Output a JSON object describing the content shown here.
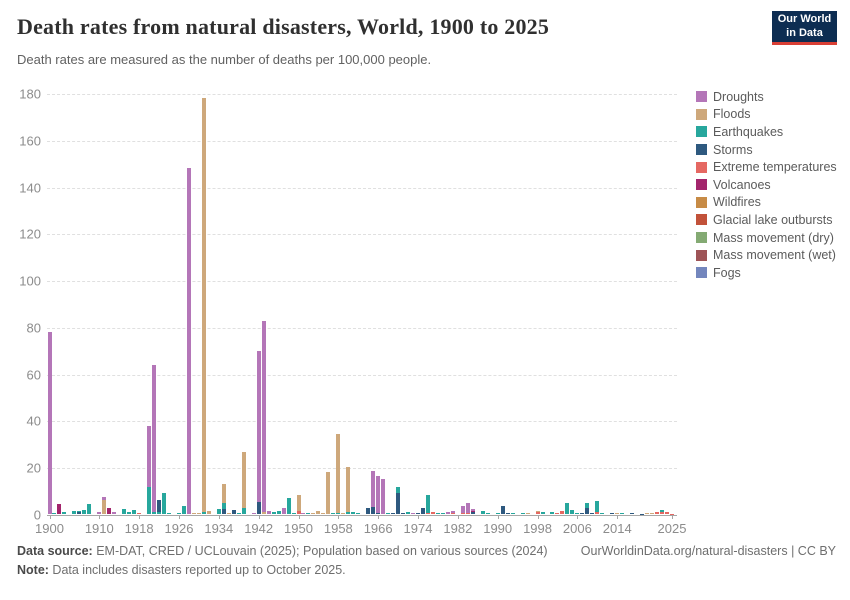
{
  "header": {
    "title": "Death rates from natural disasters, World, 1900 to 2025",
    "subtitle": "Death rates are measured as the number of deaths per 100,000 people.",
    "logo_line1": "Our World",
    "logo_line2": "in Data"
  },
  "legend": {
    "items": [
      {
        "label": "Droughts",
        "color": "#b476b8"
      },
      {
        "label": "Floods",
        "color": "#cea87b"
      },
      {
        "label": "Earthquakes",
        "color": "#27a79d"
      },
      {
        "label": "Storms",
        "color": "#2e597f"
      },
      {
        "label": "Extreme temperatures",
        "color": "#e56862"
      },
      {
        "label": "Volcanoes",
        "color": "#a3256c"
      },
      {
        "label": "Wildfires",
        "color": "#c78b46"
      },
      {
        "label": "Glacial lake outbursts",
        "color": "#c2523a"
      },
      {
        "label": "Mass movement (dry)",
        "color": "#84aa73"
      },
      {
        "label": "Mass movement (wet)",
        "color": "#9e5457"
      },
      {
        "label": "Fogs",
        "color": "#7386bd"
      }
    ]
  },
  "chart_data": {
    "type": "bar",
    "stacked": true,
    "title": "Death rates from natural disasters, World, 1900 to 2025",
    "unit": "deaths per 100,000 people",
    "xlabel": "",
    "ylabel": "",
    "ylim": [
      0,
      180
    ],
    "y_ticks": [
      0,
      20,
      40,
      60,
      80,
      100,
      120,
      140,
      160,
      180
    ],
    "x_range": [
      1900,
      2025
    ],
    "x_ticks": [
      1900,
      1910,
      1918,
      1926,
      1934,
      1942,
      1950,
      1958,
      1966,
      1974,
      1982,
      1990,
      1998,
      2006,
      2014,
      2025
    ],
    "grid": "horizontal-dashed",
    "legend_position": "right",
    "series": [
      "Droughts",
      "Floods",
      "Earthquakes",
      "Storms",
      "Extreme temperatures",
      "Volcanoes",
      "Wildfires",
      "Glacial lake outbursts",
      "Mass movement (dry)",
      "Mass movement (wet)",
      "Fogs"
    ],
    "bars": [
      {
        "year": 1900,
        "segments": [
          [
            "Droughts",
            77.8
          ]
        ]
      },
      {
        "year": 1901,
        "segments": [
          [
            "Earthquakes",
            0.3
          ]
        ]
      },
      {
        "year": 1902,
        "segments": [
          [
            "Volcanoes",
            4.4
          ]
        ]
      },
      {
        "year": 1903,
        "segments": [
          [
            "Earthquakes",
            0.7
          ]
        ]
      },
      {
        "year": 1905,
        "segments": [
          [
            "Earthquakes",
            1.2
          ]
        ]
      },
      {
        "year": 1906,
        "segments": [
          [
            "Storms",
            0.9
          ],
          [
            "Earthquakes",
            0.4
          ]
        ]
      },
      {
        "year": 1907,
        "segments": [
          [
            "Earthquakes",
            1.8
          ]
        ]
      },
      {
        "year": 1908,
        "segments": [
          [
            "Earthquakes",
            4.2
          ]
        ]
      },
      {
        "year": 1910,
        "segments": [
          [
            "Droughts",
            0.8
          ]
        ]
      },
      {
        "year": 1911,
        "segments": [
          [
            "Floods",
            5.8
          ],
          [
            "Droughts",
            1.4
          ]
        ]
      },
      {
        "year": 1912,
        "segments": [
          [
            "Volcanoes",
            2.6
          ]
        ]
      },
      {
        "year": 1913,
        "segments": [
          [
            "Droughts",
            1.0
          ]
        ]
      },
      {
        "year": 1915,
        "segments": [
          [
            "Earthquakes",
            2.0
          ]
        ]
      },
      {
        "year": 1916,
        "segments": [
          [
            "Earthquakes",
            0.7
          ]
        ]
      },
      {
        "year": 1917,
        "segments": [
          [
            "Earthquakes",
            1.9
          ]
        ]
      },
      {
        "year": 1918,
        "segments": [
          [
            "Extreme temperatures",
            0.5
          ]
        ]
      },
      {
        "year": 1920,
        "segments": [
          [
            "Earthquakes",
            11.5
          ],
          [
            "Droughts",
            26.0
          ]
        ]
      },
      {
        "year": 1921,
        "segments": [
          [
            "Earthquakes",
            0.8
          ],
          [
            "Droughts",
            63.0
          ]
        ]
      },
      {
        "year": 1922,
        "segments": [
          [
            "Earthquakes",
            1.0
          ],
          [
            "Storms",
            5.0
          ]
        ]
      },
      {
        "year": 1923,
        "segments": [
          [
            "Earthquakes",
            8.8
          ]
        ]
      },
      {
        "year": 1924,
        "segments": [
          [
            "Earthquakes",
            0.5
          ]
        ]
      },
      {
        "year": 1926,
        "segments": [
          [
            "Earthquakes",
            0.4
          ]
        ]
      },
      {
        "year": 1927,
        "segments": [
          [
            "Earthquakes",
            3.6
          ]
        ]
      },
      {
        "year": 1928,
        "segments": [
          [
            "Droughts",
            147.8
          ]
        ]
      },
      {
        "year": 1929,
        "segments": [
          [
            "Floods",
            0.5
          ]
        ]
      },
      {
        "year": 1930,
        "segments": [
          [
            "Floods",
            0.6
          ]
        ]
      },
      {
        "year": 1931,
        "segments": [
          [
            "Earthquakes",
            0.8
          ],
          [
            "Floods",
            177.1
          ]
        ]
      },
      {
        "year": 1932,
        "segments": [
          [
            "Floods",
            1.4
          ]
        ]
      },
      {
        "year": 1934,
        "segments": [
          [
            "Earthquakes",
            2.0
          ]
        ]
      },
      {
        "year": 1935,
        "segments": [
          [
            "Storms",
            2.2
          ],
          [
            "Earthquakes",
            2.6
          ],
          [
            "Floods",
            8.2
          ]
        ]
      },
      {
        "year": 1936,
        "segments": [
          [
            "Floods",
            0.4
          ]
        ]
      },
      {
        "year": 1937,
        "segments": [
          [
            "Storms",
            1.6
          ]
        ]
      },
      {
        "year": 1938,
        "segments": [
          [
            "Earthquakes",
            0.4
          ]
        ]
      },
      {
        "year": 1939,
        "segments": [
          [
            "Earthquakes",
            2.4
          ],
          [
            "Floods",
            24.2
          ]
        ]
      },
      {
        "year": 1941,
        "segments": [
          [
            "Droughts",
            0.4
          ]
        ]
      },
      {
        "year": 1942,
        "segments": [
          [
            "Storms",
            5.3
          ],
          [
            "Droughts",
            64.5
          ]
        ]
      },
      {
        "year": 1943,
        "segments": [
          [
            "Floods",
            1.0
          ],
          [
            "Droughts",
            81.6
          ]
        ]
      },
      {
        "year": 1944,
        "segments": [
          [
            "Droughts",
            1.3
          ]
        ]
      },
      {
        "year": 1945,
        "segments": [
          [
            "Earthquakes",
            0.9
          ]
        ]
      },
      {
        "year": 1946,
        "segments": [
          [
            "Earthquakes",
            1.5
          ]
        ]
      },
      {
        "year": 1947,
        "segments": [
          [
            "Droughts",
            2.5
          ]
        ]
      },
      {
        "year": 1948,
        "segments": [
          [
            "Earthquakes",
            7.0
          ]
        ]
      },
      {
        "year": 1949,
        "segments": [
          [
            "Earthquakes",
            0.6
          ]
        ]
      },
      {
        "year": 1950,
        "segments": [
          [
            "Extreme temperatures",
            1.3
          ],
          [
            "Floods",
            6.8
          ]
        ]
      },
      {
        "year": 1951,
        "segments": [
          [
            "Droughts",
            0.4
          ]
        ]
      },
      {
        "year": 1952,
        "segments": [
          [
            "Earthquakes",
            0.4
          ]
        ]
      },
      {
        "year": 1953,
        "segments": [
          [
            "Floods",
            0.6
          ]
        ]
      },
      {
        "year": 1954,
        "segments": [
          [
            "Floods",
            1.5
          ]
        ]
      },
      {
        "year": 1955,
        "segments": [
          [
            "Floods",
            0.4
          ]
        ]
      },
      {
        "year": 1956,
        "segments": [
          [
            "Floods",
            18.0
          ]
        ]
      },
      {
        "year": 1957,
        "segments": [
          [
            "Earthquakes",
            0.4
          ]
        ]
      },
      {
        "year": 1958,
        "segments": [
          [
            "Earthquakes",
            0.6
          ],
          [
            "Floods",
            33.7
          ]
        ]
      },
      {
        "year": 1959,
        "segments": [
          [
            "Floods",
            0.5
          ]
        ]
      },
      {
        "year": 1960,
        "segments": [
          [
            "Earthquakes",
            0.7
          ],
          [
            "Floods",
            19.5
          ]
        ]
      },
      {
        "year": 1961,
        "segments": [
          [
            "Earthquakes",
            0.9
          ]
        ]
      },
      {
        "year": 1962,
        "segments": [
          [
            "Earthquakes",
            0.5
          ]
        ]
      },
      {
        "year": 1964,
        "segments": [
          [
            "Storms",
            2.6
          ]
        ]
      },
      {
        "year": 1965,
        "segments": [
          [
            "Storms",
            3.0
          ],
          [
            "Droughts",
            15.4
          ]
        ]
      },
      {
        "year": 1966,
        "segments": [
          [
            "Storms",
            0.4
          ],
          [
            "Droughts",
            15.8
          ]
        ]
      },
      {
        "year": 1967,
        "segments": [
          [
            "Droughts",
            15.0
          ]
        ]
      },
      {
        "year": 1968,
        "segments": [
          [
            "Earthquakes",
            0.5
          ]
        ]
      },
      {
        "year": 1969,
        "segments": [
          [
            "Storms",
            0.4
          ]
        ]
      },
      {
        "year": 1970,
        "segments": [
          [
            "Storms",
            9.0
          ],
          [
            "Earthquakes",
            2.5
          ]
        ]
      },
      {
        "year": 1971,
        "segments": [
          [
            "Storms",
            0.4
          ]
        ]
      },
      {
        "year": 1972,
        "segments": [
          [
            "Earthquakes",
            0.8
          ]
        ]
      },
      {
        "year": 1973,
        "segments": [
          [
            "Droughts",
            0.3
          ]
        ]
      },
      {
        "year": 1974,
        "segments": [
          [
            "Storms",
            0.5
          ]
        ]
      },
      {
        "year": 1975,
        "segments": [
          [
            "Storms",
            2.4
          ]
        ]
      },
      {
        "year": 1976,
        "segments": [
          [
            "Extreme temperatures",
            0.4
          ],
          [
            "Earthquakes",
            7.8
          ]
        ]
      },
      {
        "year": 1977,
        "segments": [
          [
            "Extreme temperatures",
            0.9
          ]
        ]
      },
      {
        "year": 1978,
        "segments": [
          [
            "Earthquakes",
            0.6
          ]
        ]
      },
      {
        "year": 1979,
        "segments": [
          [
            "Earthquakes",
            0.3
          ]
        ]
      },
      {
        "year": 1980,
        "segments": [
          [
            "Droughts",
            0.9
          ]
        ]
      },
      {
        "year": 1981,
        "segments": [
          [
            "Extreme temperatures",
            0.3
          ],
          [
            "Droughts",
            1.0
          ]
        ]
      },
      {
        "year": 1983,
        "segments": [
          [
            "Extreme temperatures",
            0.6
          ],
          [
            "Droughts",
            3.0
          ]
        ]
      },
      {
        "year": 1984,
        "segments": [
          [
            "Extreme temperatures",
            0.5
          ],
          [
            "Droughts",
            4.2
          ]
        ]
      },
      {
        "year": 1985,
        "segments": [
          [
            "Storms",
            0.8
          ],
          [
            "Volcanoes",
            0.5
          ],
          [
            "Droughts",
            0.9
          ]
        ]
      },
      {
        "year": 1987,
        "segments": [
          [
            "Earthquakes",
            1.2
          ]
        ]
      },
      {
        "year": 1988,
        "segments": [
          [
            "Earthquakes",
            0.5
          ]
        ]
      },
      {
        "year": 1990,
        "segments": [
          [
            "Earthquakes",
            0.3
          ]
        ]
      },
      {
        "year": 1991,
        "segments": [
          [
            "Storms",
            3.3
          ]
        ]
      },
      {
        "year": 1992,
        "segments": [
          [
            "Storms",
            0.3
          ]
        ]
      },
      {
        "year": 1993,
        "segments": [
          [
            "Earthquakes",
            0.3
          ]
        ]
      },
      {
        "year": 1995,
        "segments": [
          [
            "Earthquakes",
            0.3
          ]
        ]
      },
      {
        "year": 1996,
        "segments": [
          [
            "Floods",
            0.3
          ]
        ]
      },
      {
        "year": 1998,
        "segments": [
          [
            "Extreme temperatures",
            0.7
          ],
          [
            "Floods",
            0.5
          ]
        ]
      },
      {
        "year": 1999,
        "segments": [
          [
            "Earthquakes",
            0.8
          ]
        ]
      },
      {
        "year": 2001,
        "segments": [
          [
            "Earthquakes",
            0.7
          ]
        ]
      },
      {
        "year": 2002,
        "segments": [
          [
            "Extreme temperatures",
            0.3
          ]
        ]
      },
      {
        "year": 2003,
        "segments": [
          [
            "Extreme temperatures",
            1.4
          ]
        ]
      },
      {
        "year": 2004,
        "segments": [
          [
            "Earthquakes",
            4.6
          ]
        ]
      },
      {
        "year": 2005,
        "segments": [
          [
            "Earthquakes",
            1.7
          ]
        ]
      },
      {
        "year": 2006,
        "segments": [
          [
            "Earthquakes",
            0.4
          ]
        ]
      },
      {
        "year": 2007,
        "segments": [
          [
            "Storms",
            0.4
          ]
        ]
      },
      {
        "year": 2008,
        "segments": [
          [
            "Storms",
            2.4
          ],
          [
            "Earthquakes",
            2.2
          ]
        ]
      },
      {
        "year": 2009,
        "segments": [
          [
            "Storms",
            0.3
          ]
        ]
      },
      {
        "year": 2010,
        "segments": [
          [
            "Extreme temperatures",
            1.0
          ],
          [
            "Earthquakes",
            4.7
          ]
        ]
      },
      {
        "year": 2011,
        "segments": [
          [
            "Earthquakes",
            0.4
          ]
        ]
      },
      {
        "year": 2013,
        "segments": [
          [
            "Storms",
            0.4
          ]
        ]
      },
      {
        "year": 2014,
        "segments": [
          [
            "Floods",
            0.3
          ]
        ]
      },
      {
        "year": 2015,
        "segments": [
          [
            "Earthquakes",
            0.3
          ]
        ]
      },
      {
        "year": 2017,
        "segments": [
          [
            "Storms",
            0.3
          ]
        ]
      },
      {
        "year": 2019,
        "segments": [
          [
            "Storms",
            0.2
          ]
        ]
      },
      {
        "year": 2020,
        "segments": [
          [
            "Floods",
            0.3
          ]
        ]
      },
      {
        "year": 2021,
        "segments": [
          [
            "Floods",
            0.4
          ]
        ]
      },
      {
        "year": 2022,
        "segments": [
          [
            "Extreme temperatures",
            1.0
          ]
        ]
      },
      {
        "year": 2023,
        "segments": [
          [
            "Extreme temperatures",
            0.9
          ],
          [
            "Earthquakes",
            0.7
          ]
        ]
      },
      {
        "year": 2024,
        "segments": [
          [
            "Extreme temperatures",
            1.0
          ]
        ]
      },
      {
        "year": 2025,
        "segments": [
          [
            "Extreme temperatures",
            0.2
          ]
        ]
      }
    ]
  },
  "footer": {
    "source_label": "Data source:",
    "source_text": " EM-DAT, CRED / UCLouvain (2025); Population based on various sources (2024)",
    "attribution": "OurWorldinData.org/natural-disasters | CC BY",
    "note_label": "Note:",
    "note_text": " Data includes disasters reported up to October 2025."
  }
}
